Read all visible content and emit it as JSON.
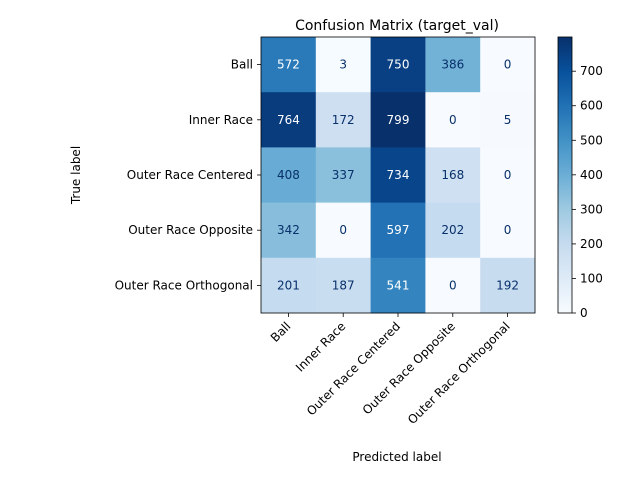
{
  "chart_data": {
    "type": "heatmap",
    "title": "Confusion Matrix (target_val)",
    "xlabel": "Predicted label",
    "ylabel": "True label",
    "row_labels": [
      "Ball",
      "Inner Race",
      "Outer Race Centered",
      "Outer Race Opposite",
      "Outer Race Orthogonal"
    ],
    "col_labels": [
      "Ball",
      "Inner Race",
      "Outer Race Centered",
      "Outer Race Opposite",
      "Outer Race Orthogonal"
    ],
    "values": [
      [
        572,
        3,
        750,
        386,
        0
      ],
      [
        764,
        172,
        799,
        0,
        5
      ],
      [
        408,
        337,
        734,
        168,
        0
      ],
      [
        342,
        0,
        597,
        202,
        0
      ],
      [
        201,
        187,
        541,
        0,
        192
      ]
    ],
    "colormap": "Blues",
    "vmin": 0,
    "vmax": 799,
    "colorbar_ticks": [
      0,
      100,
      200,
      300,
      400,
      500,
      600,
      700
    ],
    "grid": false,
    "legend": "colorbar-right"
  }
}
